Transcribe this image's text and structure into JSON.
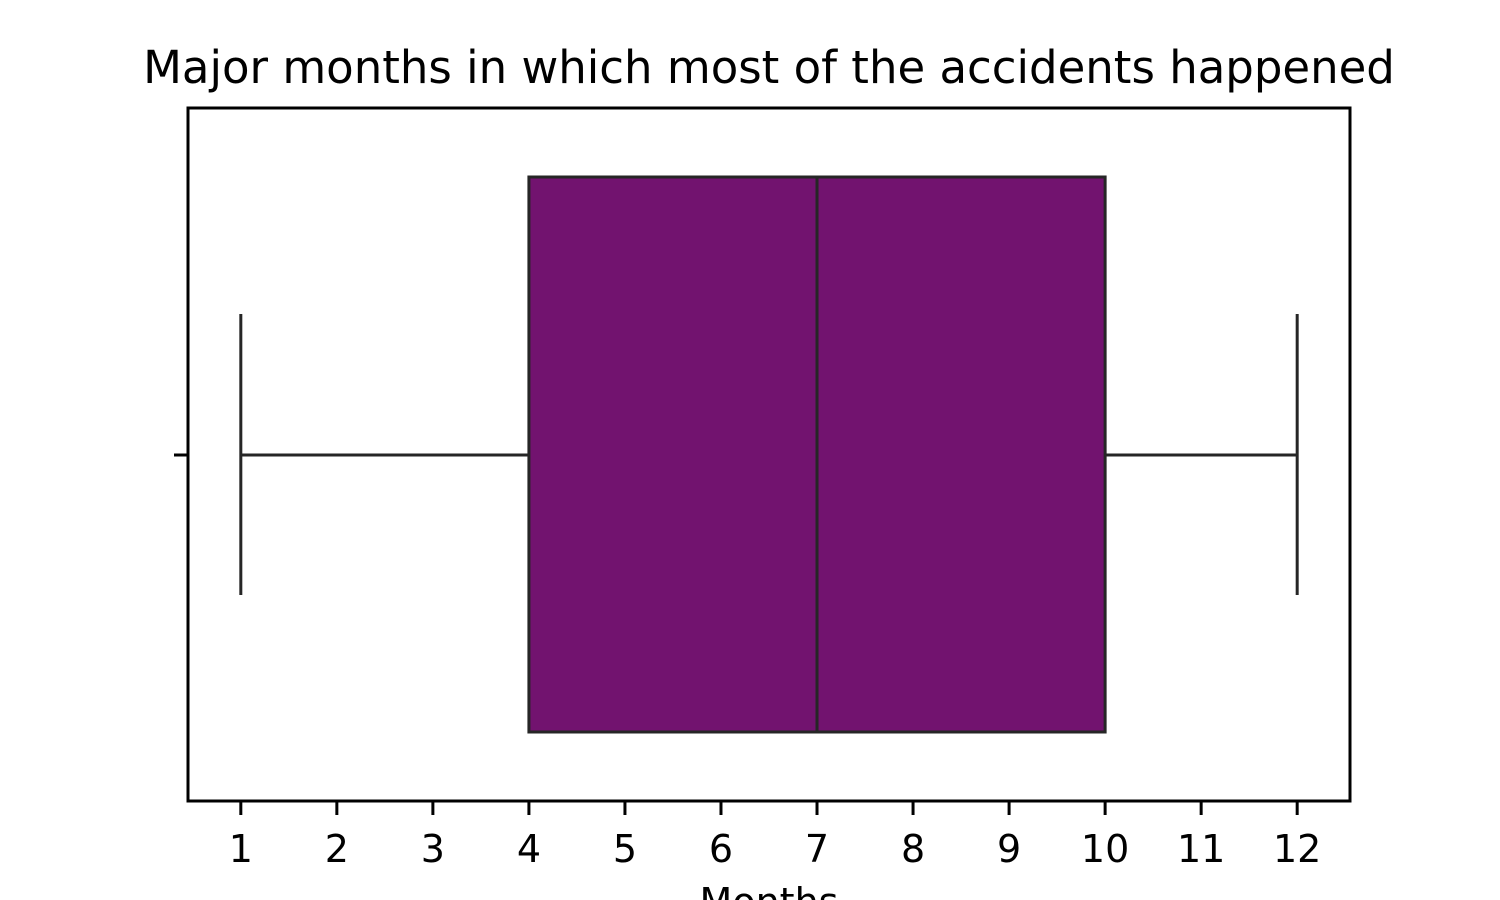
{
  "chart_data": {
    "type": "box",
    "title": "Major months in which most of the accidents happened",
    "xlabel": "Months",
    "ylabel": "",
    "orientation": "horizontal",
    "xlim": [
      0.45,
      12.55
    ],
    "x_ticks": [
      1,
      2,
      3,
      4,
      5,
      6,
      7,
      8,
      9,
      10,
      11,
      12
    ],
    "x_tick_labels": [
      "1",
      "2",
      "3",
      "4",
      "5",
      "6",
      "7",
      "8",
      "9",
      "10",
      "11",
      "12"
    ],
    "grid": false,
    "box": {
      "whisker_low": 1,
      "q1": 4,
      "median": 7,
      "q3": 10,
      "whisker_high": 12
    },
    "colors": {
      "box_fill": "#72136F",
      "line": "#262626",
      "axes": "#000000"
    }
  }
}
